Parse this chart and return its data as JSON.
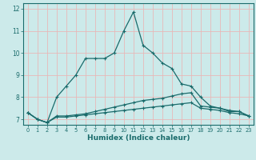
{
  "xlabel": "Humidex (Indice chaleur)",
  "ylabel": "",
  "background_color": "#cceaea",
  "line_color": "#1a6b6b",
  "grid_color": "#e8b8b8",
  "xlim": [
    -0.5,
    23.5
  ],
  "ylim": [
    6.75,
    12.25
  ],
  "yticks": [
    7,
    8,
    9,
    10,
    11,
    12
  ],
  "xticks": [
    0,
    1,
    2,
    3,
    4,
    5,
    6,
    7,
    8,
    9,
    10,
    11,
    12,
    13,
    14,
    15,
    16,
    17,
    18,
    19,
    20,
    21,
    22,
    23
  ],
  "series_peak_x": [
    0,
    1,
    2,
    3,
    4,
    5,
    6,
    7,
    8,
    9,
    10,
    11,
    12,
    13,
    14,
    15,
    16,
    17,
    18,
    19,
    20,
    21,
    22,
    23
  ],
  "series_peak_y": [
    7.3,
    7.0,
    6.85,
    8.0,
    8.5,
    9.0,
    9.75,
    9.75,
    9.75,
    10.0,
    11.0,
    11.85,
    10.35,
    10.0,
    9.55,
    9.3,
    8.6,
    8.5,
    8.0,
    7.6,
    7.5,
    7.35,
    7.35,
    7.15
  ],
  "series_mid_x": [
    0,
    1,
    2,
    3,
    4,
    5,
    6,
    7,
    8,
    9,
    10,
    11,
    12,
    13,
    14,
    15,
    16,
    17,
    18,
    19,
    20,
    21,
    22,
    23
  ],
  "series_mid_y": [
    7.3,
    7.0,
    6.85,
    7.15,
    7.15,
    7.2,
    7.25,
    7.35,
    7.45,
    7.55,
    7.65,
    7.75,
    7.85,
    7.9,
    7.95,
    8.05,
    8.15,
    8.2,
    7.6,
    7.55,
    7.5,
    7.4,
    7.35,
    7.15
  ],
  "series_low_x": [
    0,
    1,
    2,
    3,
    4,
    5,
    6,
    7,
    8,
    9,
    10,
    11,
    12,
    13,
    14,
    15,
    16,
    17,
    18,
    19,
    20,
    21,
    22,
    23
  ],
  "series_low_y": [
    7.3,
    7.0,
    6.85,
    7.1,
    7.1,
    7.15,
    7.2,
    7.25,
    7.3,
    7.35,
    7.4,
    7.45,
    7.5,
    7.55,
    7.6,
    7.65,
    7.7,
    7.75,
    7.5,
    7.45,
    7.4,
    7.3,
    7.25,
    7.15
  ]
}
